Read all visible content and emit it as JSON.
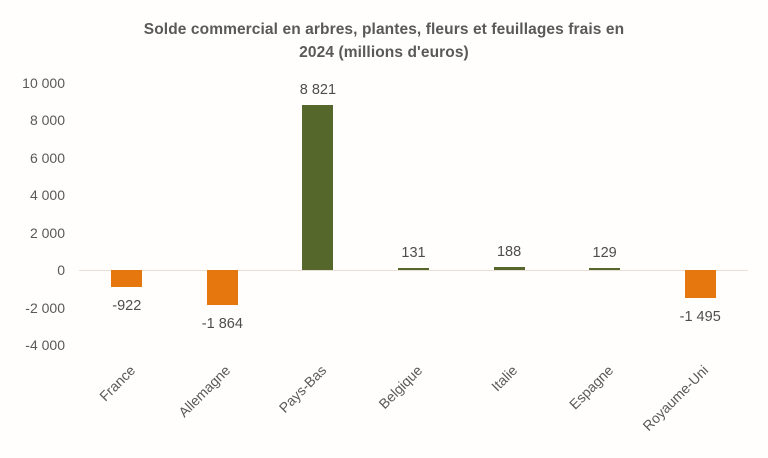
{
  "chart_data": {
    "type": "bar",
    "title": "Solde commercial en arbres, plantes, fleurs et feuillages frais en 2024 (millions d'euros)",
    "title_lines": [
      "Solde commercial en arbres, plantes, fleurs et feuillages frais en",
      "2024 (millions d'euros)"
    ],
    "categories": [
      "France",
      "Allemagne",
      "Pays-Bas",
      "Belgique",
      "Italie",
      "Espagne",
      "Royaume-Uni"
    ],
    "values": [
      -922,
      -1864,
      8821,
      131,
      188,
      129,
      -1495
    ],
    "value_labels": [
      "-922",
      "-1 864",
      "8 821",
      "131",
      "188",
      "129",
      "-1 495"
    ],
    "xlabel": "",
    "ylabel": "",
    "ylim": [
      -4000,
      10000
    ],
    "yticks": [
      {
        "v": 10000,
        "label": "10 000"
      },
      {
        "v": 8000,
        "label": "8 000"
      },
      {
        "v": 6000,
        "label": "6 000"
      },
      {
        "v": 4000,
        "label": "4 000"
      },
      {
        "v": 2000,
        "label": "2 000"
      },
      {
        "v": 0,
        "label": "0"
      },
      {
        "v": -2000,
        "label": "-2 000"
      },
      {
        "v": -4000,
        "label": "-4 000"
      }
    ],
    "grid": false,
    "legend": "none",
    "colors": {
      "positive_bar": "#55672b",
      "negative_bar": "#e6760e",
      "title_text": "#595959",
      "axis_text": "#595959",
      "value_label_text": "#4d4d4d",
      "zero_line": "#eadfd4",
      "background": "#ffffff"
    }
  }
}
